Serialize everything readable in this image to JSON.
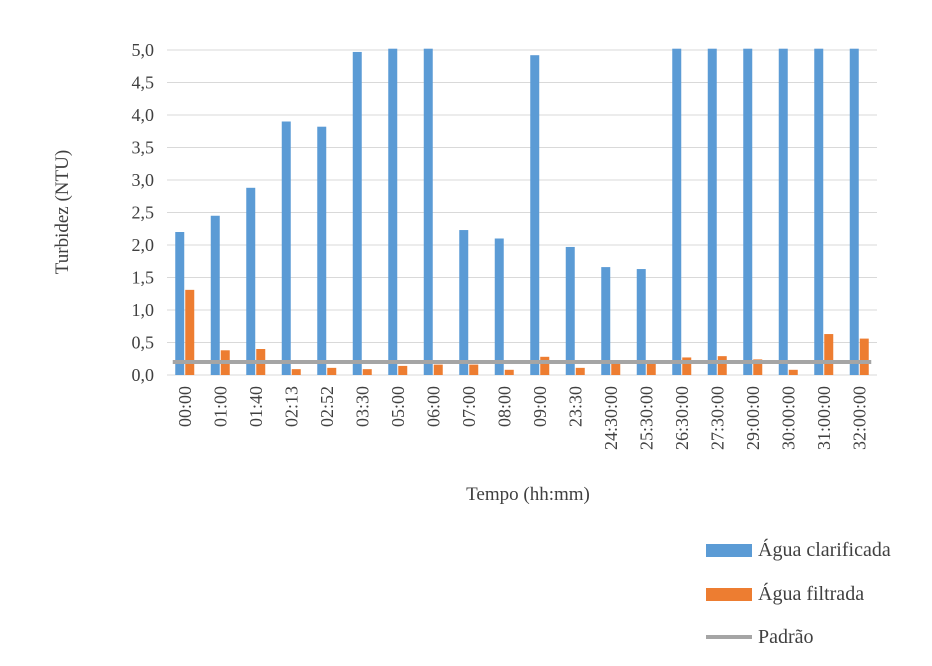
{
  "chart_data": {
    "type": "bar",
    "xlabel": "Tempo (hh:mm)",
    "ylabel": "Turbidez (NTU)",
    "ylim": [
      0,
      5
    ],
    "yticks": [
      "0,0",
      "0,5",
      "1,0",
      "1,5",
      "2,0",
      "2,5",
      "3,0",
      "3,5",
      "4,0",
      "4,5",
      "5,0"
    ],
    "grid": true,
    "legend_position": "bottom-right",
    "categories": [
      "00:00",
      "01:00",
      "01:40",
      "02:13",
      "02:52",
      "03:30",
      "05:00",
      "06:00",
      "07:00",
      "08:00",
      "09:00",
      "23:30",
      "24:30:00",
      "25:30:00",
      "26:30:00",
      "27:30:00",
      "29:00:00",
      "30:00:00",
      "31:00:00",
      "32:00:00"
    ],
    "series": [
      {
        "name": "Água clarificada",
        "type": "bar",
        "color": "#5b9bd5",
        "values": [
          2.2,
          2.45,
          2.88,
          3.9,
          3.82,
          4.97,
          5.02,
          5.02,
          2.23,
          2.1,
          4.92,
          1.97,
          1.66,
          1.63,
          5.02,
          5.02,
          5.02,
          5.02,
          5.02,
          5.02
        ]
      },
      {
        "name": "Água filtrada",
        "type": "bar",
        "color": "#ed7d31",
        "values": [
          1.31,
          0.38,
          0.4,
          0.09,
          0.11,
          0.09,
          0.14,
          0.16,
          0.16,
          0.08,
          0.28,
          0.11,
          0.17,
          0.17,
          0.27,
          0.29,
          0.24,
          0.08,
          0.63,
          0.56
        ]
      },
      {
        "name": "Padrão",
        "type": "line",
        "color": "#a5a5a5",
        "values": [
          0.2,
          0.2,
          0.2,
          0.2,
          0.2,
          0.2,
          0.2,
          0.2,
          0.2,
          0.2,
          0.2,
          0.2,
          0.2,
          0.2,
          0.2,
          0.2,
          0.2,
          0.2,
          0.2,
          0.2
        ]
      }
    ]
  }
}
